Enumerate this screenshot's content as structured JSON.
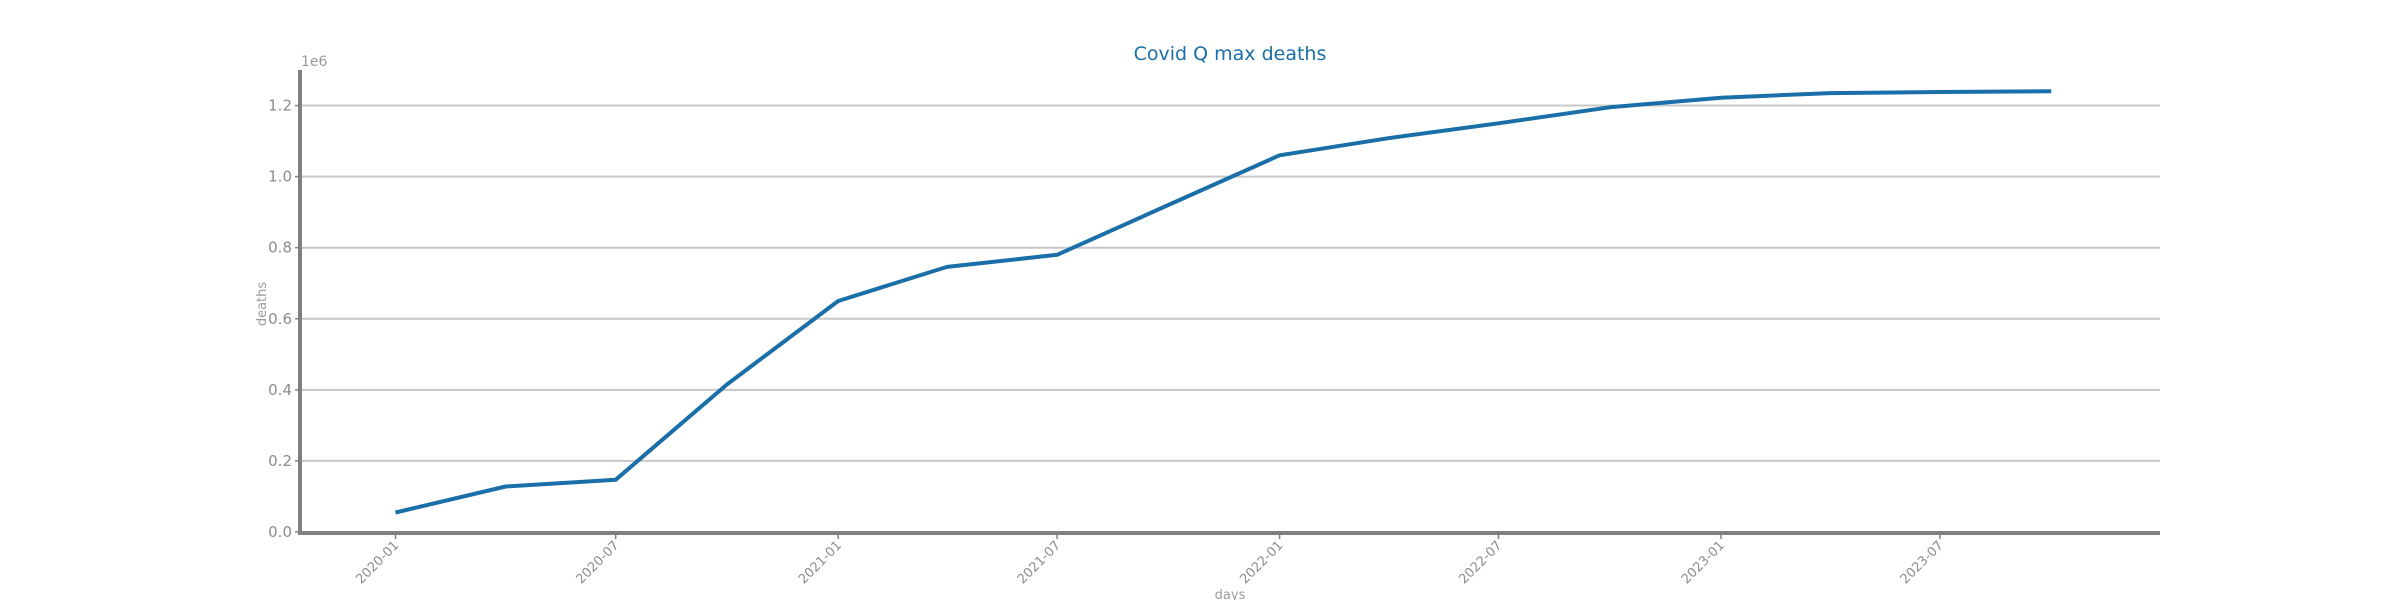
{
  "chart_data": {
    "type": "line",
    "title": "Covid Q max deaths",
    "xlabel": "days",
    "ylabel": "deaths",
    "y_scale_label": "1e6",
    "x_tick_labels": [
      "2020-01",
      "2020-07",
      "2021-01",
      "2021-07",
      "2022-01",
      "2022-07",
      "2023-01",
      "2023-07"
    ],
    "y_tick_labels": [
      "0.0",
      "0.2",
      "0.4",
      "0.6",
      "0.8",
      "1.0",
      "1.2"
    ],
    "ylim": [
      0,
      1300000
    ],
    "xlim": [
      "2019-10-14",
      "2023-12-30"
    ],
    "grid": "horizontal",
    "series": [
      {
        "color": "#1a6fa8",
        "x": [
          "2020-01-01",
          "2020-04-01",
          "2020-07-01",
          "2020-10-01",
          "2021-01-01",
          "2021-04-01",
          "2021-07-01",
          "2021-10-01",
          "2022-01-01",
          "2022-04-01",
          "2022-07-01",
          "2022-10-01",
          "2023-01-01",
          "2023-04-01",
          "2023-07-01",
          "2023-10-01"
        ],
        "values": [
          55000,
          128000,
          147000,
          415000,
          650000,
          746000,
          780000,
          920000,
          1060000,
          1108000,
          1150000,
          1195000,
          1222000,
          1235000,
          1238000,
          1240000
        ]
      }
    ]
  }
}
